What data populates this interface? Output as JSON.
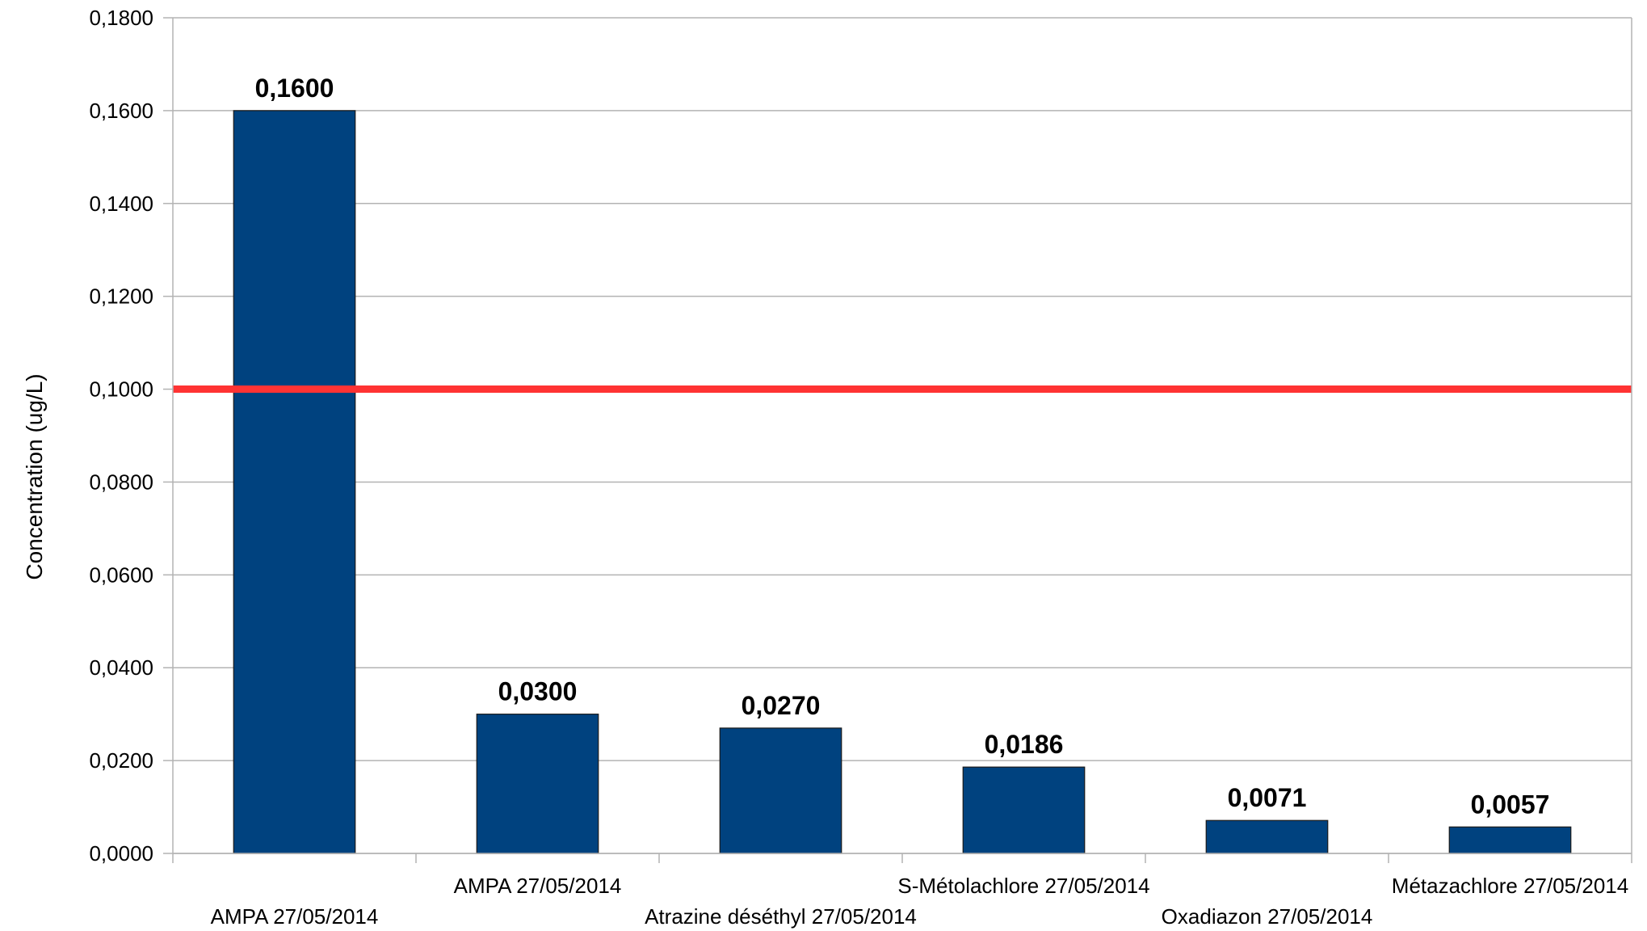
{
  "chart_data": {
    "type": "bar",
    "ylabel": "Concentration (ug/L)",
    "xlabel": "",
    "ylim": [
      0,
      0.18
    ],
    "yticks": [
      "0,0000",
      "0,0200",
      "0,0400",
      "0,0600",
      "0,0800",
      "0,1000",
      "0,1200",
      "0,1400",
      "0,1600",
      "0,1800"
    ],
    "categories": [
      "AMPA 27/05/2014",
      "AMPA 27/05/2014",
      "Atrazine déséthyl 27/05/2014",
      "S-Métolachlore 27/05/2014",
      "Oxadiazon 27/05/2014",
      "Métazachlore 27/05/2014"
    ],
    "values": [
      0.16,
      0.03,
      0.027,
      0.0186,
      0.0071,
      0.0057
    ],
    "data_labels": [
      "0,1600",
      "0,0300",
      "0,0270",
      "0,0186",
      "0,0071",
      "0,0057"
    ],
    "reference_line": {
      "value": 0.1,
      "color": "#ff3333"
    },
    "bar_color": "#00427f",
    "grid": true,
    "legend": "none"
  }
}
